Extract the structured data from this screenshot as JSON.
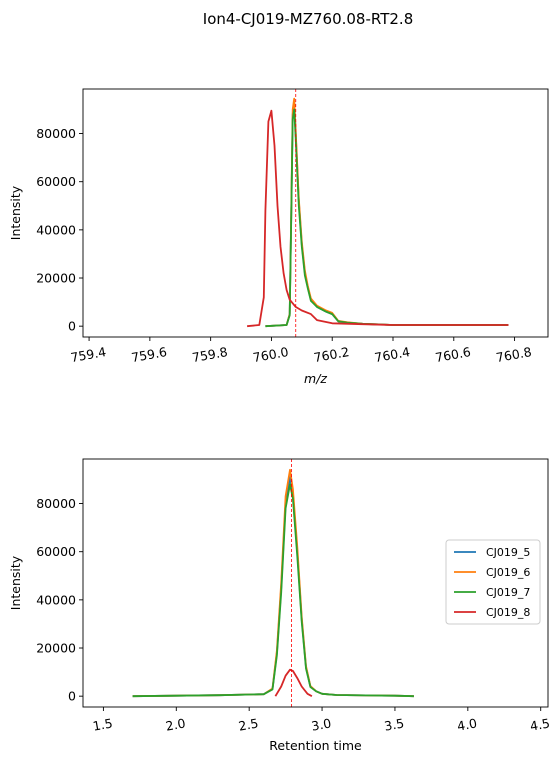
{
  "figure": {
    "title": "Ion4-CJ019-MZ760.08-RT2.8"
  },
  "legend": {
    "placement": "center-right",
    "entries": [
      "CJ019_5",
      "CJ019_6",
      "CJ019_7",
      "CJ019_8"
    ]
  },
  "colors": {
    "CJ019_5": "#1f77b4",
    "CJ019_6": "#ff7f0e",
    "CJ019_7": "#2ca02c",
    "CJ019_8": "#d62728",
    "marker_line": "#ff0000"
  },
  "chart_data": [
    {
      "type": "line",
      "xlabel": "m/z",
      "ylabel": "Intensity",
      "xlim": [
        759.38,
        760.91
      ],
      "ylim": [
        -4500,
        98500
      ],
      "xticks": [
        "759.4",
        "759.6",
        "759.8",
        "760.0",
        "760.2",
        "760.4",
        "760.6",
        "760.8"
      ],
      "yticks": [
        "0",
        "20000",
        "40000",
        "60000",
        "80000"
      ],
      "xtick_values": [
        759.4,
        759.6,
        759.8,
        760.0,
        760.2,
        760.4,
        760.6,
        760.8
      ],
      "ytick_values": [
        0,
        20000,
        40000,
        60000,
        80000
      ],
      "reference_line": {
        "x": 760.08,
        "style": "dashed"
      },
      "grid": false,
      "series": [
        {
          "name": "CJ019_5",
          "x": [
            759.98,
            760.05,
            760.06,
            760.065,
            760.07,
            760.075,
            760.08,
            760.09,
            760.1,
            760.11,
            760.12,
            760.13,
            760.15,
            760.18,
            760.2,
            760.22,
            760.25,
            760.3,
            760.4,
            760.5,
            760.6,
            760.7,
            760.78
          ],
          "y": [
            0,
            500,
            5000,
            45000,
            88000,
            93000,
            80000,
            52000,
            34000,
            22000,
            16000,
            11000,
            8000,
            6000,
            5000,
            2000,
            1500,
            1000,
            500,
            500,
            500,
            500,
            500
          ]
        },
        {
          "name": "CJ019_6",
          "x": [
            759.98,
            760.05,
            760.06,
            760.065,
            760.07,
            760.075,
            760.08,
            760.09,
            760.1,
            760.11,
            760.12,
            760.13,
            760.15,
            760.18,
            760.2,
            760.22,
            760.25,
            760.3,
            760.4,
            760.5,
            760.6,
            760.7,
            760.78
          ],
          "y": [
            0,
            500,
            5000,
            46000,
            90000,
            94500,
            81000,
            53000,
            35000,
            23000,
            16500,
            11500,
            8500,
            6500,
            5500,
            2200,
            1600,
            1000,
            500,
            500,
            500,
            500,
            500
          ]
        },
        {
          "name": "CJ019_7",
          "x": [
            759.98,
            760.05,
            760.06,
            760.065,
            760.07,
            760.075,
            760.08,
            760.09,
            760.1,
            760.11,
            760.12,
            760.13,
            760.15,
            760.18,
            760.2,
            760.22,
            760.25,
            760.3,
            760.4,
            760.5,
            760.6,
            760.7,
            760.78
          ],
          "y": [
            0,
            500,
            4500,
            44000,
            86000,
            90000,
            78000,
            50000,
            33000,
            21000,
            15500,
            10500,
            8000,
            6000,
            5000,
            2000,
            1500,
            1000,
            500,
            500,
            500,
            500,
            500
          ]
        },
        {
          "name": "CJ019_8",
          "x": [
            759.92,
            759.96,
            759.975,
            759.98,
            759.99,
            760.0,
            760.01,
            760.02,
            760.03,
            760.04,
            760.05,
            760.06,
            760.08,
            760.1,
            760.13,
            760.15,
            760.2,
            760.3,
            760.4,
            760.5,
            760.6,
            760.7,
            760.78
          ],
          "y": [
            0,
            500,
            12000,
            48000,
            85000,
            89500,
            75000,
            50000,
            33000,
            22000,
            15000,
            11000,
            8000,
            6500,
            5000,
            2500,
            1200,
            800,
            500,
            500,
            500,
            500,
            500
          ]
        }
      ]
    },
    {
      "type": "line",
      "xlabel": "Retention time",
      "ylabel": "Intensity",
      "xlim": [
        1.36,
        4.55
      ],
      "ylim": [
        -4500,
        98500
      ],
      "xticks": [
        "1.5",
        "2.0",
        "2.5",
        "3.0",
        "3.5",
        "4.0",
        "4.5"
      ],
      "yticks": [
        "0",
        "20000",
        "40000",
        "60000",
        "80000"
      ],
      "xtick_values": [
        1.5,
        2.0,
        2.5,
        3.0,
        3.5,
        4.0,
        4.5
      ],
      "ytick_values": [
        0,
        20000,
        40000,
        60000,
        80000
      ],
      "reference_line": {
        "x": 2.79,
        "style": "dashed"
      },
      "grid": false,
      "series": [
        {
          "name": "CJ019_5",
          "x": [
            1.7,
            2.0,
            2.3,
            2.6,
            2.66,
            2.69,
            2.72,
            2.75,
            2.78,
            2.8,
            2.83,
            2.86,
            2.89,
            2.92,
            2.96,
            3.0,
            3.1,
            3.3,
            3.5,
            3.63
          ],
          "y": [
            0,
            200,
            400,
            800,
            3000,
            18000,
            45000,
            80000,
            91000,
            84000,
            60000,
            32000,
            12000,
            4000,
            2000,
            1000,
            500,
            300,
            200,
            0
          ]
        },
        {
          "name": "CJ019_6",
          "x": [
            1.7,
            2.0,
            2.3,
            2.6,
            2.66,
            2.69,
            2.72,
            2.75,
            2.78,
            2.8,
            2.83,
            2.86,
            2.89,
            2.92,
            2.96,
            3.0,
            3.1,
            3.3,
            3.5,
            3.63
          ],
          "y": [
            0,
            200,
            400,
            800,
            3200,
            19000,
            47000,
            83000,
            94000,
            86000,
            62000,
            33000,
            12500,
            4200,
            2000,
            1000,
            500,
            300,
            200,
            0
          ]
        },
        {
          "name": "CJ019_7",
          "x": [
            1.7,
            2.0,
            2.3,
            2.6,
            2.66,
            2.69,
            2.72,
            2.75,
            2.78,
            2.8,
            2.83,
            2.86,
            2.89,
            2.92,
            2.96,
            3.0,
            3.1,
            3.3,
            3.5,
            3.63
          ],
          "y": [
            0,
            200,
            400,
            800,
            2800,
            17000,
            43000,
            78000,
            88000,
            82000,
            58000,
            31000,
            11500,
            3800,
            2000,
            1000,
            500,
            300,
            200,
            0
          ]
        },
        {
          "name": "CJ019_8",
          "x": [
            2.68,
            2.72,
            2.75,
            2.78,
            2.8,
            2.83,
            2.86,
            2.9,
            2.93
          ],
          "y": [
            0,
            4000,
            8500,
            11000,
            10500,
            7500,
            4000,
            1000,
            0
          ]
        }
      ]
    }
  ]
}
